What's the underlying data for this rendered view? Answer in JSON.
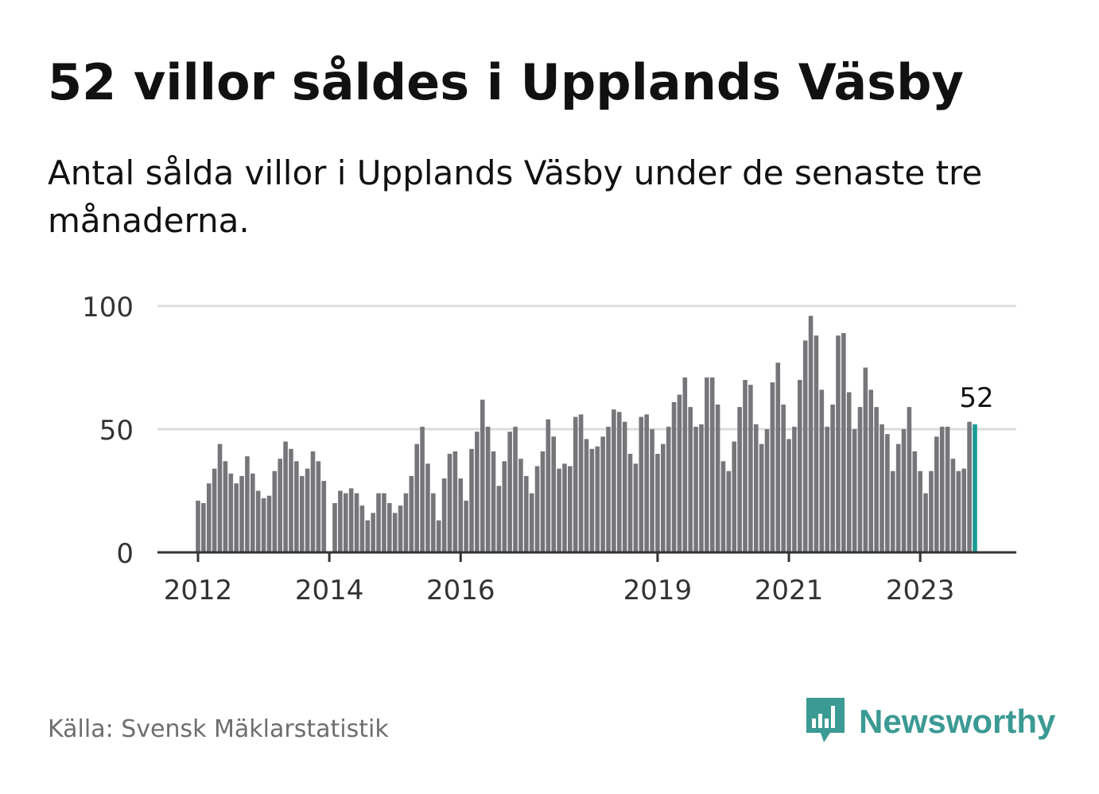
{
  "title": "52 villor såldes i Upplands Väsby",
  "subtitle": "Antal sålda villor i Upplands Väsby under de senaste tre månaderna.",
  "source": "Källa: Svensk Mäklarstatistik",
  "brand": {
    "name": "Newsworthy",
    "icon": "newsworthy-logo-icon",
    "color": "#3b9a93"
  },
  "chart_data": {
    "type": "bar",
    "title": "52 villor såldes i Upplands Väsby",
    "xlabel": "",
    "ylabel": "",
    "ylim": [
      0,
      100
    ],
    "yticks": [
      0,
      50,
      100
    ],
    "xtick_labels": [
      {
        "label": "2012",
        "index": 0
      },
      {
        "label": "2014",
        "index": 24
      },
      {
        "label": "2016",
        "index": 48
      },
      {
        "label": "2019",
        "index": 84
      },
      {
        "label": "2021",
        "index": 108
      },
      {
        "label": "2023",
        "index": 132
      }
    ],
    "grid": true,
    "bar_color": "#76767a",
    "highlight_color": "#1a9a94",
    "highlight_label": "52",
    "values": [
      21,
      20,
      28,
      34,
      44,
      37,
      32,
      28,
      31,
      39,
      32,
      25,
      22,
      23,
      33,
      38,
      45,
      42,
      37,
      31,
      34,
      41,
      37,
      29,
      null,
      20,
      25,
      24,
      26,
      24,
      19,
      13,
      16,
      24,
      24,
      20,
      16,
      19,
      24,
      31,
      44,
      51,
      36,
      24,
      13,
      30,
      40,
      41,
      30,
      21,
      42,
      49,
      62,
      51,
      41,
      27,
      37,
      49,
      51,
      38,
      31,
      24,
      35,
      41,
      54,
      47,
      34,
      36,
      35,
      55,
      56,
      46,
      42,
      43,
      47,
      51,
      58,
      57,
      53,
      40,
      36,
      55,
      56,
      50,
      40,
      44,
      51,
      61,
      64,
      71,
      59,
      51,
      52,
      71,
      71,
      60,
      37,
      33,
      45,
      59,
      70,
      68,
      52,
      44,
      50,
      69,
      77,
      60,
      46,
      51,
      70,
      86,
      96,
      88,
      66,
      51,
      60,
      88,
      89,
      65,
      50,
      59,
      75,
      66,
      59,
      52,
      48,
      33,
      44,
      50,
      59,
      41,
      33,
      24,
      33,
      47,
      51,
      51,
      38,
      33,
      34,
      53,
      52
    ]
  }
}
